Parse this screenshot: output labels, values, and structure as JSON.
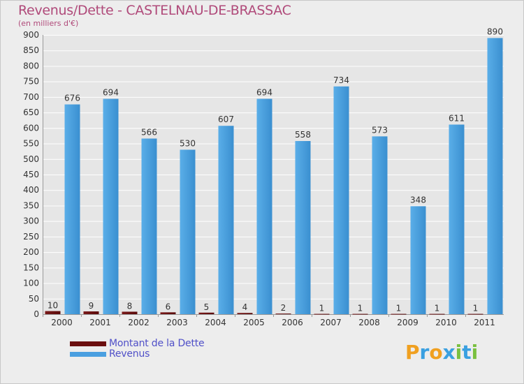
{
  "chart_data": {
    "type": "bar",
    "title": "Revenus/Dette - CASTELNAU-DE-BRASSAC",
    "subtitle": "(en milliers d'€)",
    "categories": [
      "2000",
      "2001",
      "2002",
      "2003",
      "2004",
      "2005",
      "2006",
      "2007",
      "2008",
      "2009",
      "2010",
      "2011"
    ],
    "series": [
      {
        "name": "Montant de la Dette",
        "color": "#6b0f0f",
        "values": [
          10,
          9,
          8,
          6,
          5,
          4,
          2,
          1,
          1,
          1,
          1,
          1
        ]
      },
      {
        "name": "Revenus",
        "color": "#4a9fe0",
        "values": [
          676,
          694,
          566,
          530,
          607,
          694,
          558,
          734,
          573,
          348,
          611,
          890
        ]
      }
    ],
    "ylim": [
      0,
      900
    ],
    "yticks": [
      0,
      50,
      100,
      150,
      200,
      250,
      300,
      350,
      400,
      450,
      500,
      550,
      600,
      650,
      700,
      750,
      800,
      850,
      900
    ],
    "grid": true,
    "xlabel": "",
    "ylabel": ""
  },
  "legend": {
    "items": [
      {
        "label": "Montant de la Dette",
        "color": "#6b0f0f",
        "text_color": "#5050c8"
      },
      {
        "label": "Revenus",
        "color": "#4a9fe0",
        "text_color": "#5050c8"
      }
    ]
  },
  "brand": {
    "letters": [
      "P",
      "r",
      "o",
      "x",
      "i",
      "t",
      "i"
    ],
    "colors": [
      "#f0a020",
      "#3aa0e0",
      "#f0a020",
      "#3aa0e0",
      "#7ac040",
      "#3aa0e0",
      "#7ac040"
    ]
  }
}
